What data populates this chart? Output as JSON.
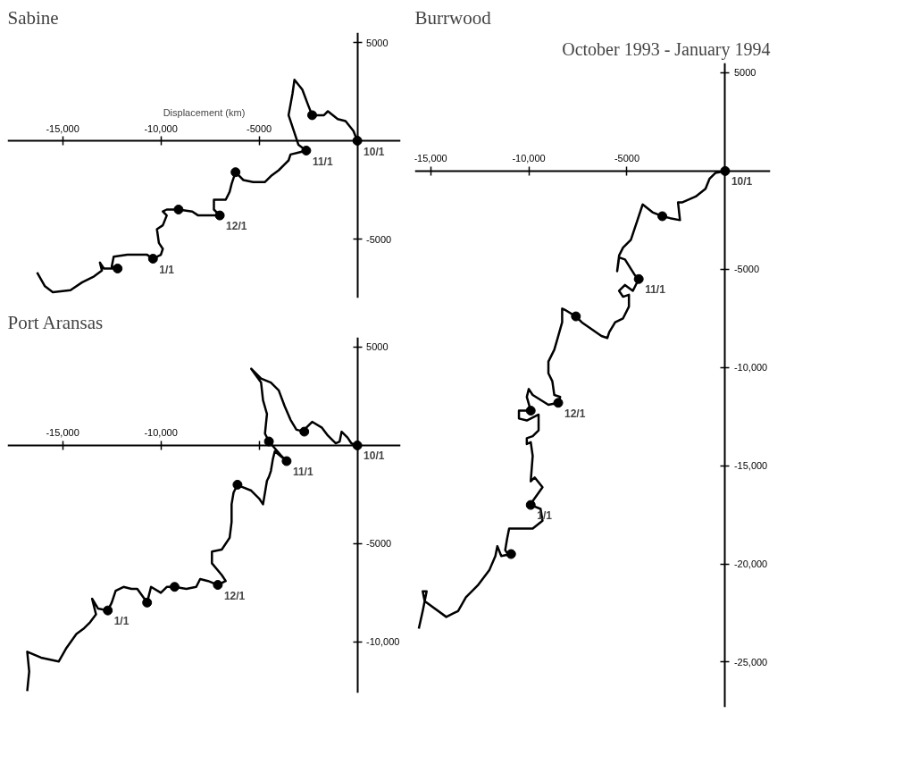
{
  "chart_data": [
    {
      "type": "line",
      "title": "Sabine",
      "xlabel": "Displacement (km)",
      "xlim": [
        -17800,
        2200
      ],
      "ylim": [
        -8000,
        5500
      ],
      "xticks": [
        {
          "value": -15000,
          "label": "-15,000"
        },
        {
          "value": -10000,
          "label": "-10,000"
        },
        -5000
      ],
      "yticks": [
        5000,
        -5000
      ],
      "series": [
        {
          "color": "#000000",
          "x": [
            0,
            -200,
            -600,
            -1000,
            -1500,
            -1700,
            -2000,
            -2300,
            -2500,
            -2800,
            -3200,
            -3300,
            -3500,
            -3200,
            -3000,
            -2600,
            -3000,
            -3400,
            -3500,
            -3700,
            -4000,
            -4400,
            -4700,
            -5300,
            -5800,
            -6200,
            -6400,
            -6500,
            -6700,
            -7300,
            -7300,
            -7000,
            -7600,
            -8100,
            -8400,
            -9100,
            -9700,
            -9900,
            -9700,
            -9900,
            -10200,
            -10100,
            -9900,
            -10000,
            -10400,
            -10700,
            -11700,
            -12400,
            -12500,
            -12200,
            -12900,
            -13100,
            -13000,
            -13400,
            -14000,
            -14600,
            -15500,
            -15900,
            -16300
          ],
          "values": [
            0,
            500,
            1000,
            1100,
            1500,
            1300,
            1300,
            1300,
            1800,
            2600,
            3100,
            2400,
            1300,
            400,
            -200,
            -500,
            -600,
            -700,
            -1000,
            -1200,
            -1500,
            -1800,
            -2100,
            -2100,
            -2000,
            -1600,
            -2200,
            -2600,
            -3000,
            -3000,
            -3500,
            -3800,
            -3800,
            -3800,
            -3600,
            -3500,
            -3500,
            -3600,
            -3800,
            -4300,
            -4500,
            -5200,
            -5500,
            -5800,
            -6000,
            -5800,
            -5800,
            -5900,
            -6400,
            -6500,
            -6500,
            -6200,
            -6600,
            -6900,
            -7200,
            -7600,
            -7700,
            -7400,
            -6700
          ]
        },
        {
          "type": "scatter",
          "marker": "circle",
          "color": "#000000",
          "x": [
            0,
            -2300,
            -2600,
            -6200,
            -7000,
            -9100,
            -10400,
            -12200
          ],
          "values": [
            0,
            1300,
            -500,
            -1600,
            -3800,
            -3500,
            -6000,
            -6500
          ],
          "value_labels": [
            "10/1",
            null,
            "11/1",
            null,
            "12/1",
            null,
            "1/1",
            null
          ]
        }
      ]
    },
    {
      "type": "line",
      "title": "Port Aransas",
      "xlim": [
        -17800,
        2200
      ],
      "ylim": [
        -12600,
        5500
      ],
      "xticks": [
        {
          "value": -15000,
          "label": "-15,000"
        },
        {
          "value": -10000,
          "label": "-10,000"
        },
        {
          "value": -5000,
          "label": null
        }
      ],
      "yticks": [
        5000,
        -5000,
        {
          "value": -10000,
          "label": "-10,000"
        }
      ],
      "series": [
        {
          "color": "#000000",
          "x": [
            0,
            -300,
            -500,
            -800,
            -900,
            -1100,
            -1500,
            -1800,
            -2300,
            -2600,
            -2700,
            -3100,
            -3400,
            -3700,
            -4000,
            -4400,
            -4900,
            -5400,
            -4900,
            -4800,
            -4600,
            -4700,
            -4500,
            -3900,
            -3600,
            -4200,
            -4300,
            -4400,
            -4500,
            -4600,
            -4800,
            -5000,
            -5400,
            -5900,
            -6100,
            -6300,
            -6400,
            -6400,
            -6500,
            -6900,
            -7400,
            -7400,
            -6900,
            -6700,
            -7100,
            -7600,
            -8000,
            -8200,
            -8700,
            -9300,
            -9700,
            -10000,
            -10500,
            -10700,
            -11200,
            -11500,
            -11900,
            -12300,
            -12500,
            -12700,
            -13200,
            -13500,
            -13300,
            -13600,
            -13900,
            -14300,
            -14800,
            -15200,
            -16100,
            -16800,
            -16700,
            -16800
          ],
          "values": [
            0,
            100,
            400,
            700,
            200,
            100,
            500,
            900,
            1200,
            900,
            700,
            800,
            1300,
            2000,
            2800,
            3200,
            3400,
            3900,
            3200,
            2300,
            1600,
            600,
            200,
            -500,
            -800,
            -300,
            -700,
            -1300,
            -1600,
            -1800,
            -3000,
            -2700,
            -2300,
            -2100,
            -2000,
            -2400,
            -3000,
            -3900,
            -4700,
            -5300,
            -5400,
            -6000,
            -6600,
            -6900,
            -7100,
            -6900,
            -6800,
            -7200,
            -7300,
            -7200,
            -7200,
            -7500,
            -7200,
            -8000,
            -7300,
            -7300,
            -7200,
            -7400,
            -8000,
            -8400,
            -8300,
            -7800,
            -8600,
            -9000,
            -9300,
            -9600,
            -10300,
            -11000,
            -10800,
            -10500,
            -11500,
            -12500
          ]
        },
        {
          "type": "scatter",
          "marker": "circle",
          "color": "#000000",
          "x": [
            0,
            -2700,
            -4500,
            -3600,
            -6100,
            -7100,
            -9300,
            -10700,
            -12700
          ],
          "values": [
            0,
            700,
            200,
            -800,
            -2000,
            -7100,
            -7200,
            -8000,
            -8400
          ],
          "value_labels": [
            "10/1",
            null,
            null,
            "11/1",
            null,
            "12/1",
            null,
            null,
            "1/1"
          ]
        }
      ]
    },
    {
      "type": "line",
      "title": "Burrwood",
      "annotations": [
        "October 1993 - January 1994"
      ],
      "xlim": [
        -15800,
        2300
      ],
      "ylim": [
        -27300,
        5500
      ],
      "xticks": [
        {
          "value": -15000,
          "label": "-15,000"
        },
        {
          "value": -10000,
          "label": "-10,000"
        },
        -5000
      ],
      "yticks": [
        5000,
        -5000,
        {
          "value": -10000,
          "label": "-10,000"
        },
        {
          "value": -15000,
          "label": "-15,000"
        },
        {
          "value": -20000,
          "label": "-20,000"
        },
        {
          "value": -25000,
          "label": "-25,000"
        }
      ],
      "series": [
        {
          "color": "#000000",
          "x": [
            0,
            -500,
            -800,
            -1000,
            -1500,
            -2200,
            -2400,
            -2300,
            -2800,
            -3200,
            -3700,
            -4200,
            -4500,
            -4800,
            -5200,
            -5400,
            -5500,
            -5400,
            -5100,
            -4600,
            -4400,
            -4700,
            -5100,
            -5400,
            -5200,
            -4900,
            -4900,
            -5200,
            -5600,
            -5900,
            -6000,
            -6300,
            -7300,
            -7600,
            -8100,
            -8300,
            -8300,
            -8500,
            -8700,
            -9000,
            -9000,
            -8800,
            -8700,
            -8400,
            -8500,
            -9000,
            -9800,
            -10000,
            -10100,
            -9900,
            -10500,
            -10500,
            -10100,
            -9500,
            -9500,
            -9800,
            -10100,
            -10100,
            -9900,
            -9800,
            -9900,
            -9700,
            -9300,
            -9800,
            -9900,
            -9400,
            -9300,
            -9800,
            -10500,
            -11000,
            -11100,
            -11200,
            -11000,
            -10900,
            -11400,
            -11600,
            -11700,
            -12000,
            -12600,
            -13200,
            -13600,
            -14200,
            -15300,
            -15400,
            -15200,
            -15400,
            -15600
          ],
          "values": [
            0,
            -100,
            -400,
            -900,
            -1300,
            -1600,
            -1600,
            -2500,
            -2400,
            -2300,
            -2100,
            -1700,
            -2600,
            -3500,
            -3900,
            -4300,
            -5100,
            -4400,
            -4500,
            -5300,
            -5500,
            -6100,
            -5800,
            -6100,
            -6400,
            -6300,
            -6900,
            -7500,
            -7700,
            -8200,
            -8500,
            -8400,
            -7700,
            -7400,
            -7100,
            -7000,
            -7700,
            -8400,
            -9100,
            -9700,
            -10300,
            -10700,
            -11400,
            -11500,
            -11800,
            -11900,
            -11400,
            -11100,
            -11500,
            -12200,
            -12200,
            -12600,
            -12700,
            -12400,
            -13200,
            -13500,
            -13600,
            -13900,
            -13800,
            -14500,
            -15800,
            -15600,
            -16100,
            -16800,
            -17000,
            -17200,
            -17800,
            -18200,
            -18200,
            -18200,
            -18700,
            -19300,
            -19600,
            -19500,
            -19600,
            -19100,
            -19600,
            -20300,
            -21100,
            -21700,
            -22400,
            -22700,
            -21900,
            -21400,
            -21400,
            -22400,
            -23300
          ]
        },
        {
          "type": "scatter",
          "marker": "circle",
          "color": "#000000",
          "x": [
            0,
            -3200,
            -4400,
            -7600,
            -8500,
            -9900,
            -9900,
            -10900
          ],
          "values": [
            0,
            -2300,
            -5500,
            -7400,
            -11800,
            -12200,
            -17000,
            -19500
          ],
          "value_labels": [
            "10/1",
            null,
            "11/1",
            null,
            "12/1",
            null,
            "1/1",
            null
          ]
        }
      ]
    }
  ]
}
